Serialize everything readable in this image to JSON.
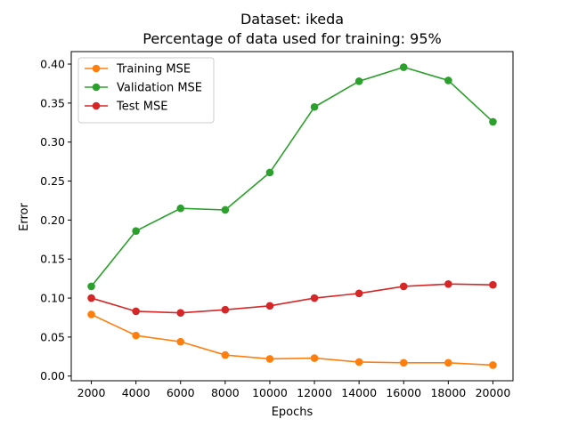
{
  "chart_data": {
    "type": "line",
    "title": "Dataset: ikeda",
    "subtitle": "Percentage of data used for training: 95%",
    "xlabel": "Epochs",
    "ylabel": "Error",
    "x": [
      2000,
      4000,
      6000,
      8000,
      10000,
      12000,
      14000,
      16000,
      18000,
      20000
    ],
    "x_tick_labels": [
      "2000",
      "4000",
      "6000",
      "8000",
      "10000",
      "12000",
      "14000",
      "16000",
      "18000",
      "20000"
    ],
    "y_tick_values": [
      0.0,
      0.05,
      0.1,
      0.15,
      0.2,
      0.25,
      0.3,
      0.35,
      0.4
    ],
    "y_tick_labels": [
      "0.00",
      "0.05",
      "0.10",
      "0.15",
      "0.20",
      "0.25",
      "0.30",
      "0.35",
      "0.40"
    ],
    "xlim": [
      1100,
      20900
    ],
    "ylim": [
      -0.006,
      0.416
    ],
    "grid": false,
    "legend_position": "top-left",
    "series": [
      {
        "name": "Training MSE",
        "color": "#ff7f0e",
        "values": [
          0.079,
          0.052,
          0.044,
          0.027,
          0.022,
          0.023,
          0.018,
          0.017,
          0.017,
          0.014
        ]
      },
      {
        "name": "Validation MSE",
        "color": "#2ca02c",
        "values": [
          0.115,
          0.186,
          0.215,
          0.213,
          0.261,
          0.345,
          0.378,
          0.396,
          0.379,
          0.326
        ]
      },
      {
        "name": "Test MSE",
        "color": "#d62728",
        "values": [
          0.1,
          0.083,
          0.081,
          0.085,
          0.09,
          0.1,
          0.106,
          0.115,
          0.118,
          0.117
        ]
      }
    ]
  }
}
